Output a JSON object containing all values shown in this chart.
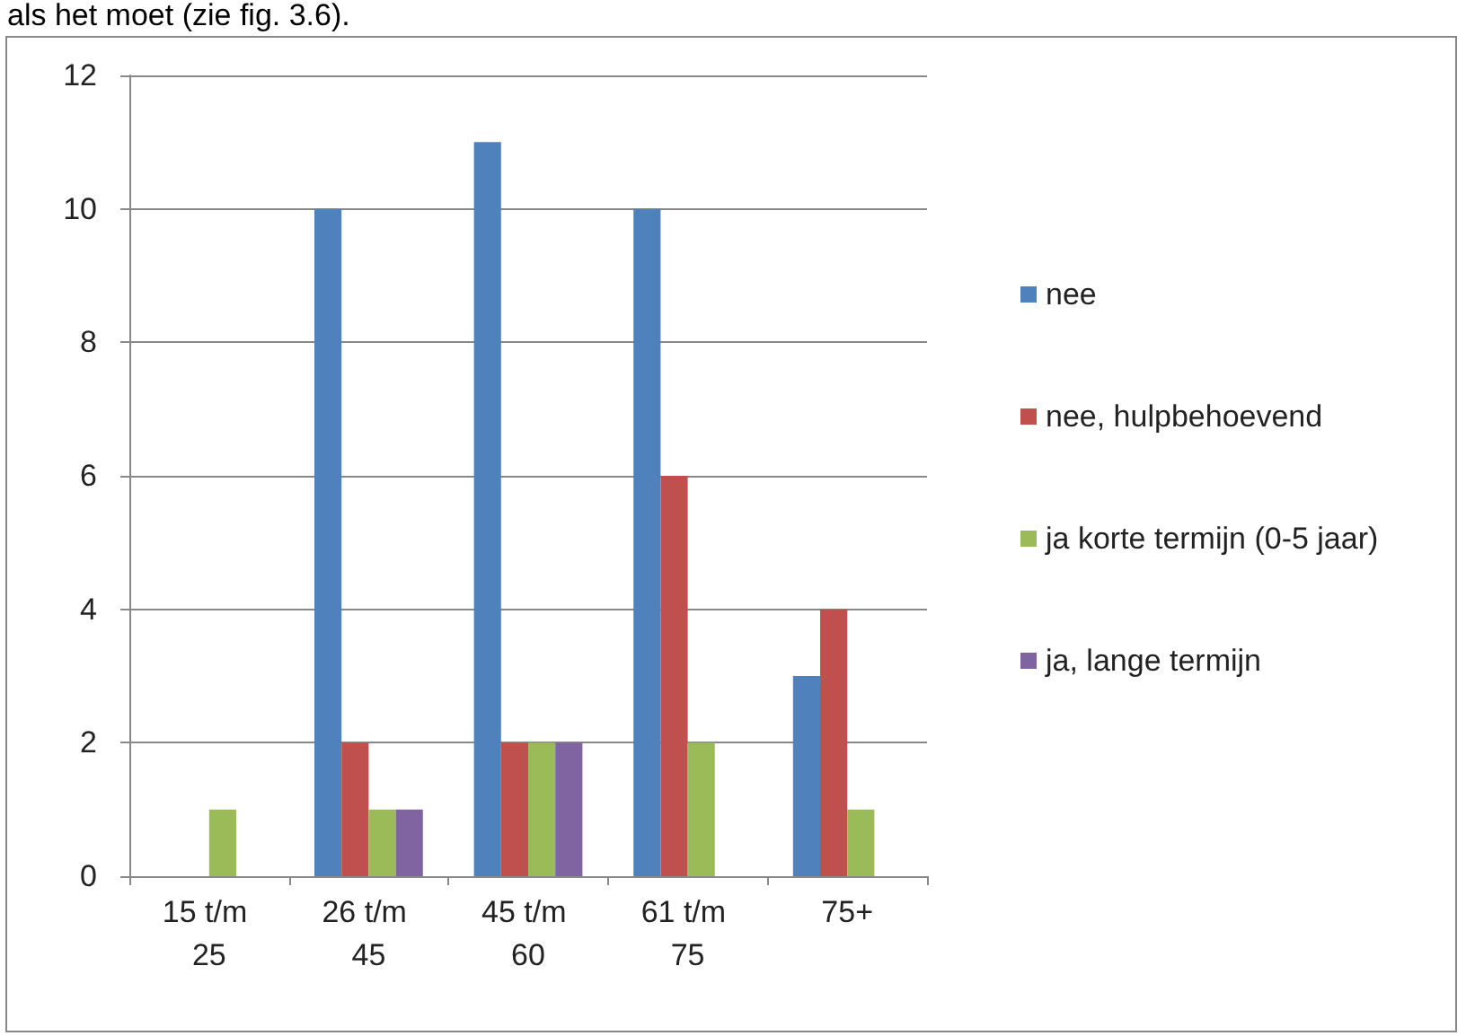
{
  "chart_data": {
    "type": "bar",
    "annotations": [
      "als het moet (zie fig. 3.6)."
    ],
    "categories": [
      "15 t/m 25",
      "26 t/m 45",
      "45 t/m 60",
      "61 t/m 75",
      "75+"
    ],
    "series": [
      {
        "name": "nee",
        "color": "#4f81bd",
        "values": [
          0,
          10,
          11,
          10,
          3
        ]
      },
      {
        "name": "nee, hulpbehoevend",
        "color": "#c0504d",
        "values": [
          0,
          2,
          2,
          6,
          4
        ]
      },
      {
        "name": "ja korte termijn (0-5 jaar)",
        "color": "#9bbb59",
        "values": [
          1,
          1,
          2,
          2,
          1
        ]
      },
      {
        "name": "ja, lange termijn",
        "color": "#8064a2",
        "values": [
          0,
          1,
          2,
          0,
          0
        ]
      }
    ],
    "ylim": [
      0,
      12
    ],
    "yticks": [
      0,
      2,
      4,
      6,
      8,
      10,
      12
    ],
    "grid": "y",
    "legend": "right"
  }
}
